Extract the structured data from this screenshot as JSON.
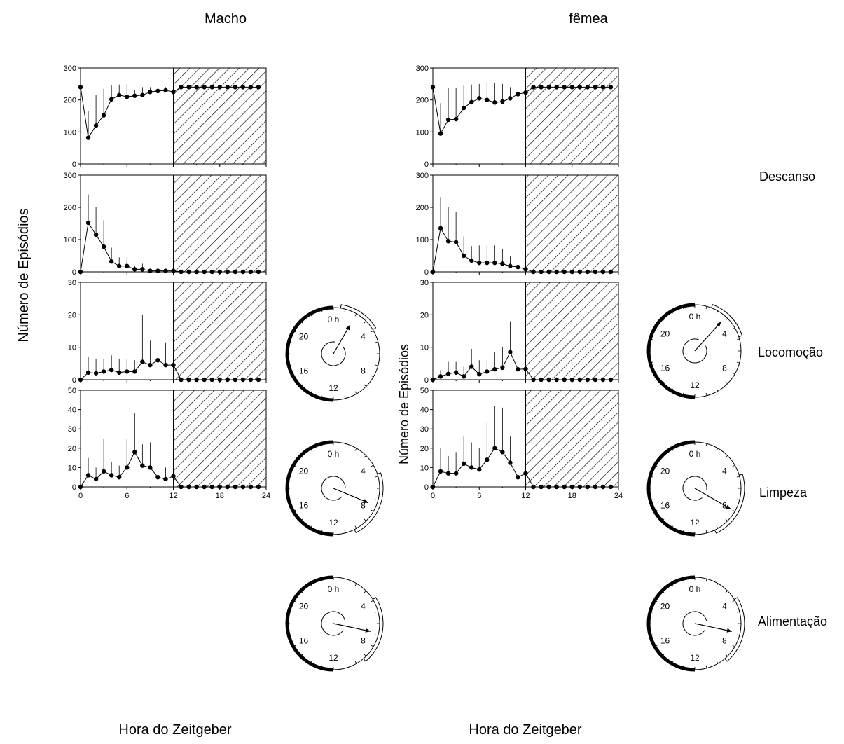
{
  "columns": [
    {
      "id": "male",
      "title": "Macho",
      "xlabel": "Hora do Zeitgeber"
    },
    {
      "id": "female",
      "title": "fêmea",
      "xlabel": "Hora do Zeitgeber"
    }
  ],
  "ylabel_main": "Número de Episódios",
  "ylabel_female": "Número de Episódios",
  "behaviors": [
    "Descanso",
    "Locomoção",
    "Limpeza",
    "Alimentação"
  ],
  "chart_data": [
    {
      "type": "line",
      "column": "Macho",
      "behavior": "Descanso",
      "x": [
        0,
        1,
        2,
        3,
        4,
        5,
        6,
        7,
        8,
        9,
        10,
        11,
        12,
        13,
        14,
        15,
        16,
        17,
        18,
        19,
        20,
        21,
        22,
        23
      ],
      "y": [
        240,
        82,
        120,
        152,
        202,
        215,
        210,
        213,
        215,
        225,
        228,
        230,
        225,
        240,
        240,
        240,
        240,
        240,
        240,
        240,
        240,
        240,
        240,
        240
      ],
      "y_err_upper": [
        15,
        165,
        215,
        235,
        245,
        248,
        250,
        230,
        240,
        240,
        238,
        240,
        235,
        240,
        240,
        240,
        240,
        240,
        240,
        240,
        240,
        240,
        240,
        240
      ],
      "xlim": [
        0,
        24
      ],
      "ylim": [
        0,
        300
      ],
      "yticks": [
        0,
        100,
        200,
        300
      ],
      "dark_phase": [
        12,
        24
      ]
    },
    {
      "type": "line",
      "column": "Macho",
      "behavior": "Locomoção",
      "x": [
        0,
        1,
        2,
        3,
        4,
        5,
        6,
        7,
        8,
        9,
        10,
        11,
        12,
        13,
        14,
        15,
        16,
        17,
        18,
        19,
        20,
        21,
        22,
        23
      ],
      "y": [
        0,
        152,
        115,
        78,
        32,
        18,
        18,
        8,
        8,
        3,
        3,
        3,
        3,
        0,
        0,
        0,
        0,
        0,
        0,
        0,
        0,
        0,
        0,
        0
      ],
      "y_err_upper": [
        0,
        240,
        200,
        160,
        75,
        45,
        45,
        20,
        25,
        8,
        6,
        6,
        6,
        0,
        0,
        0,
        0,
        0,
        0,
        0,
        0,
        0,
        0,
        0
      ],
      "xlim": [
        0,
        24
      ],
      "ylim": [
        0,
        300
      ],
      "yticks": [
        0,
        100,
        200,
        300
      ],
      "dark_phase": [
        12,
        24
      ]
    },
    {
      "type": "line",
      "column": "Macho",
      "behavior": "Limpeza",
      "x": [
        0,
        1,
        2,
        3,
        4,
        5,
        6,
        7,
        8,
        9,
        10,
        11,
        12,
        13,
        14,
        15,
        16,
        17,
        18,
        19,
        20,
        21,
        22,
        23
      ],
      "y": [
        0,
        2.2,
        2,
        2.5,
        3,
        2.2,
        2.5,
        2.5,
        5.5,
        4.5,
        6,
        4.5,
        4.5,
        0,
        0,
        0,
        0,
        0,
        0,
        0,
        0,
        0,
        0,
        0
      ],
      "y_err_upper": [
        0,
        7,
        6.5,
        6.5,
        7.5,
        6.5,
        6.5,
        6,
        20,
        12,
        15.5,
        11.5,
        5,
        0,
        0,
        0,
        0,
        0,
        0,
        0,
        0,
        0,
        0,
        0
      ],
      "xlim": [
        0,
        24
      ],
      "ylim": [
        0,
        30
      ],
      "yticks": [
        0,
        10,
        20,
        30
      ],
      "dark_phase": [
        12,
        24
      ]
    },
    {
      "type": "line",
      "column": "Macho",
      "behavior": "Alimentação",
      "x": [
        0,
        1,
        2,
        3,
        4,
        5,
        6,
        7,
        8,
        9,
        10,
        11,
        12,
        13,
        14,
        15,
        16,
        17,
        18,
        19,
        20,
        21,
        22,
        23
      ],
      "y": [
        0,
        6,
        4,
        8,
        6,
        5,
        10,
        18,
        11,
        10,
        5,
        4,
        5.5,
        0,
        0,
        0,
        0,
        0,
        0,
        0,
        0,
        0,
        0,
        0
      ],
      "y_err_upper": [
        0,
        15,
        10,
        25,
        13,
        11,
        25,
        38,
        22,
        23,
        12,
        10,
        6,
        0,
        0,
        0,
        0,
        0,
        0,
        0,
        0,
        0,
        0,
        0
      ],
      "xlim": [
        0,
        24
      ],
      "ylim": [
        0,
        50
      ],
      "yticks": [
        0,
        10,
        20,
        30,
        40,
        50
      ],
      "xticks": [
        0,
        6,
        12,
        18,
        24
      ],
      "dark_phase": [
        12,
        24
      ]
    },
    {
      "type": "line",
      "column": "fêmea",
      "behavior": "Descanso",
      "x": [
        0,
        1,
        2,
        3,
        4,
        5,
        6,
        7,
        8,
        9,
        10,
        11,
        12,
        13,
        14,
        15,
        16,
        17,
        18,
        19,
        20,
        21,
        22,
        23
      ],
      "y": [
        240,
        95,
        138,
        140,
        175,
        193,
        205,
        200,
        192,
        195,
        205,
        218,
        223,
        240,
        240,
        240,
        240,
        240,
        240,
        240,
        240,
        240,
        240,
        240
      ],
      "y_err_upper": [
        15,
        190,
        238,
        237,
        245,
        248,
        250,
        255,
        252,
        250,
        240,
        245,
        230,
        240,
        240,
        240,
        240,
        240,
        240,
        240,
        240,
        240,
        240,
        240
      ],
      "xlim": [
        0,
        24
      ],
      "ylim": [
        0,
        300
      ],
      "yticks": [
        0,
        100,
        200,
        300
      ],
      "dark_phase": [
        12,
        24
      ]
    },
    {
      "type": "line",
      "column": "fêmea",
      "behavior": "Locomoção",
      "x": [
        0,
        1,
        2,
        3,
        4,
        5,
        6,
        7,
        8,
        9,
        10,
        11,
        12,
        13,
        14,
        15,
        16,
        17,
        18,
        19,
        20,
        21,
        22,
        23
      ],
      "y": [
        0,
        135,
        95,
        92,
        50,
        35,
        28,
        28,
        28,
        25,
        18,
        15,
        8,
        0,
        0,
        0,
        0,
        0,
        0,
        0,
        0,
        0,
        0,
        0
      ],
      "y_err_upper": [
        0,
        232,
        200,
        185,
        110,
        80,
        82,
        82,
        82,
        70,
        48,
        40,
        15,
        0,
        0,
        0,
        0,
        0,
        0,
        0,
        0,
        0,
        0,
        0
      ],
      "xlim": [
        0,
        24
      ],
      "ylim": [
        0,
        300
      ],
      "yticks": [
        0,
        100,
        200,
        300
      ],
      "dark_phase": [
        12,
        24
      ]
    },
    {
      "type": "line",
      "column": "fêmea",
      "behavior": "Limpeza",
      "x": [
        0,
        1,
        2,
        3,
        4,
        5,
        6,
        7,
        8,
        9,
        10,
        11,
        12,
        13,
        14,
        15,
        16,
        17,
        18,
        19,
        20,
        21,
        22,
        23
      ],
      "y": [
        0,
        1,
        1.8,
        2.2,
        1,
        4,
        1.7,
        2.5,
        3.2,
        3.7,
        8.5,
        3.2,
        3.3,
        0,
        0,
        0,
        0,
        0,
        0,
        0,
        0,
        0,
        0,
        0
      ],
      "y_err_upper": [
        0,
        3,
        5.5,
        5.5,
        4,
        9.5,
        6,
        6,
        8.5,
        10,
        18,
        11.5,
        4,
        0,
        0,
        0,
        0,
        0,
        0,
        0,
        0,
        0,
        0,
        0
      ],
      "xlim": [
        0,
        24
      ],
      "ylim": [
        0,
        30
      ],
      "yticks": [
        0,
        10,
        20,
        30
      ],
      "dark_phase": [
        12,
        24
      ]
    },
    {
      "type": "line",
      "column": "fêmea",
      "behavior": "Alimentação",
      "x": [
        0,
        1,
        2,
        3,
        4,
        5,
        6,
        7,
        8,
        9,
        10,
        11,
        12,
        13,
        14,
        15,
        16,
        17,
        18,
        19,
        20,
        21,
        22,
        23
      ],
      "y": [
        0,
        8,
        7,
        7,
        12,
        10,
        9,
        14,
        20,
        18,
        12.5,
        5,
        7,
        0,
        0,
        0,
        0,
        0,
        0,
        0,
        0,
        0,
        0,
        0
      ],
      "y_err_upper": [
        0,
        20,
        16,
        18,
        26,
        23,
        20,
        33,
        42,
        41,
        26,
        18,
        8,
        0,
        0,
        0,
        0,
        0,
        0,
        0,
        0,
        0,
        0,
        0
      ],
      "xlim": [
        0,
        24
      ],
      "ylim": [
        0,
        50
      ],
      "yticks": [
        0,
        10,
        20,
        30,
        40,
        50
      ],
      "xticks": [
        0,
        6,
        12,
        18,
        24
      ],
      "dark_phase": [
        12,
        24
      ]
    }
  ],
  "circular_data": [
    {
      "type": "circular",
      "column": "Macho",
      "behavior": "Locomoção",
      "mean_hour": 2,
      "vector_length": 0.72,
      "arc_hours": [
        0.6,
        3.9
      ]
    },
    {
      "type": "circular",
      "column": "Macho",
      "behavior": "Limpeza",
      "mean_hour": 7.5,
      "vector_length": 0.82,
      "arc_hours": [
        4.8,
        10.2
      ]
    },
    {
      "type": "circular",
      "column": "Macho",
      "behavior": "Alimentação",
      "mean_hour": 6.8,
      "vector_length": 0.82,
      "arc_hours": [
        3.9,
        9.3
      ]
    },
    {
      "type": "circular",
      "column": "fêmea",
      "behavior": "Locomoção",
      "mean_hour": 2.8,
      "vector_length": 0.85,
      "arc_hours": [
        1.4,
        4.8
      ]
    },
    {
      "type": "circular",
      "column": "fêmea",
      "behavior": "Limpeza",
      "mean_hour": 8,
      "vector_length": 0.9,
      "arc_hours": [
        4.9,
        10.3
      ]
    },
    {
      "type": "circular",
      "column": "fêmea",
      "behavior": "Alimentação",
      "mean_hour": 6.8,
      "vector_length": 0.82,
      "arc_hours": [
        3.9,
        9.3
      ]
    }
  ],
  "circle_ticks": [
    "0 h",
    "4",
    "8",
    "12",
    "16",
    "20"
  ]
}
